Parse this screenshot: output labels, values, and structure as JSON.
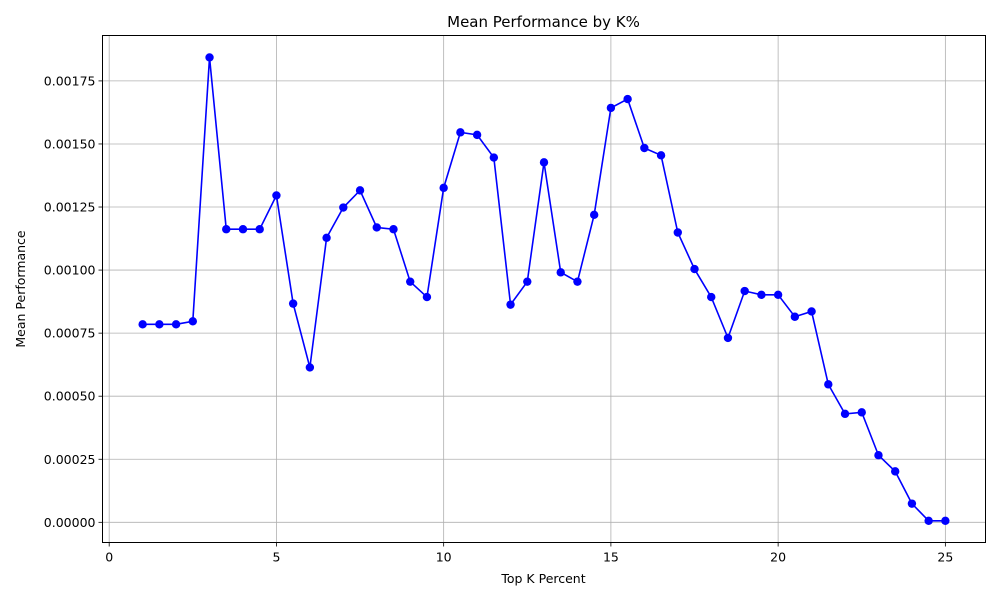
{
  "chart_data": {
    "type": "line",
    "title": "Mean Performance by K%",
    "xlabel": "Top K Percent",
    "ylabel": "Mean Performance",
    "xlim": [
      -0.2,
      26.2
    ],
    "ylim": [
      -8e-05,
      0.00193
    ],
    "x_ticks": [
      0,
      5,
      10,
      15,
      20,
      25
    ],
    "x_tick_labels": [
      "0",
      "5",
      "10",
      "15",
      "20",
      "25"
    ],
    "y_ticks": [
      0,
      0.00025,
      0.0005,
      0.00075,
      0.001,
      0.00125,
      0.0015,
      0.00175
    ],
    "y_tick_labels": [
      "0.00000",
      "0.00025",
      "0.00050",
      "0.00075",
      "0.00100",
      "0.00125",
      "0.00150",
      "0.00175"
    ],
    "grid": true,
    "series": [
      {
        "color": "#0000ff",
        "marker": "circle",
        "x": [
          1,
          1.5,
          2,
          2.5,
          3,
          3.5,
          4,
          4.5,
          5,
          5.5,
          6,
          6.5,
          7,
          7.5,
          8,
          8.5,
          9,
          9.5,
          10,
          10.5,
          11,
          11.5,
          12,
          12.5,
          13,
          13.5,
          14,
          14.5,
          15,
          15.5,
          16,
          16.5,
          17,
          17.5,
          18,
          18.5,
          19,
          19.5,
          20,
          20.5,
          21,
          21.5,
          22,
          22.5,
          23,
          23.5,
          24,
          24.5,
          25
        ],
        "y": [
          0.000785,
          0.000785,
          0.000785,
          0.000797,
          0.001843,
          0.001162,
          0.001162,
          0.001162,
          0.001296,
          0.000867,
          0.000614,
          0.001128,
          0.001248,
          0.001316,
          0.001169,
          0.001162,
          0.000954,
          0.000893,
          0.001326,
          0.001546,
          0.001536,
          0.001446,
          0.000863,
          0.000954,
          0.001427,
          0.000991,
          0.000954,
          0.001219,
          0.001643,
          0.001678,
          0.001484,
          0.001455,
          0.001149,
          0.001004,
          0.000893,
          0.000731,
          0.000917,
          0.000902,
          0.000902,
          0.000815,
          0.000836,
          0.000547,
          0.00043,
          0.000436,
          0.000266,
          0.000202,
          7.4e-05,
          6e-06,
          6e-06
        ]
      }
    ]
  }
}
